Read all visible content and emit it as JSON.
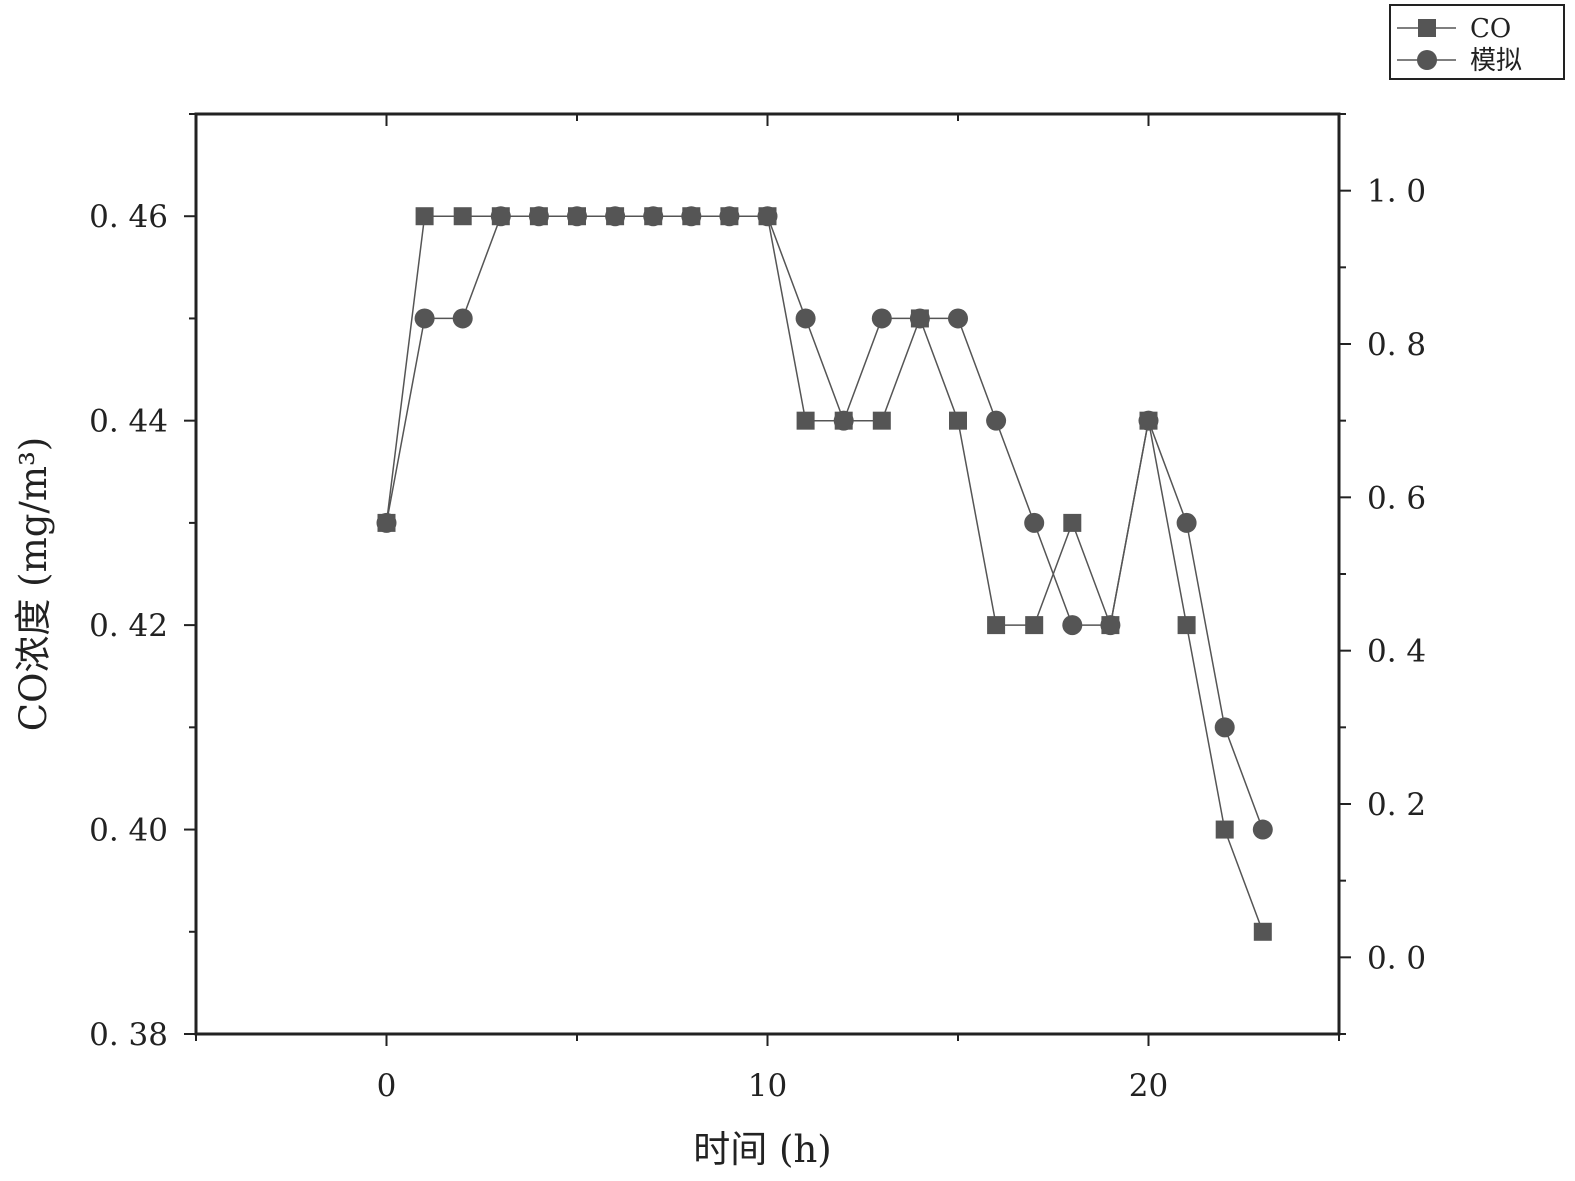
{
  "chart_data": {
    "type": "line",
    "xlabel": "时间 (h)",
    "ylabel": "CO浓度 (mg/m³)",
    "xlim": [
      -5,
      25
    ],
    "ylim": [
      0.38,
      0.47
    ],
    "y2lim": [
      -0.1,
      1.1
    ],
    "xticks": [
      "0",
      "10",
      "20"
    ],
    "yticks": [
      "0.38",
      "0.40",
      "0.42",
      "0.44",
      "0.46"
    ],
    "y2ticks": [
      "0.0",
      "0.2",
      "0.4",
      "0.6",
      "0.8",
      "1.0"
    ],
    "legend_position": "top-right",
    "grid": false,
    "series": [
      {
        "name": "CO",
        "marker": "square",
        "color": "#555555",
        "x": [
          0,
          1,
          2,
          3,
          4,
          5,
          6,
          7,
          8,
          9,
          10,
          11,
          12,
          13,
          14,
          15,
          16,
          17,
          18,
          19,
          20,
          21,
          22,
          23
        ],
        "y": [
          0.43,
          0.46,
          0.46,
          0.46,
          0.46,
          0.46,
          0.46,
          0.46,
          0.46,
          0.46,
          0.46,
          0.44,
          0.44,
          0.44,
          0.45,
          0.44,
          0.42,
          0.42,
          0.43,
          0.42,
          0.44,
          0.42,
          0.4,
          0.39
        ]
      },
      {
        "name": "模拟",
        "marker": "circle",
        "color": "#555555",
        "x": [
          0,
          1,
          2,
          3,
          4,
          5,
          6,
          7,
          8,
          9,
          10,
          11,
          12,
          13,
          14,
          15,
          16,
          17,
          18,
          19,
          20,
          21,
          22,
          23
        ],
        "y": [
          0.43,
          0.45,
          0.45,
          0.46,
          0.46,
          0.46,
          0.46,
          0.46,
          0.46,
          0.46,
          0.46,
          0.45,
          0.44,
          0.45,
          0.45,
          0.45,
          0.44,
          0.43,
          0.42,
          0.42,
          0.44,
          0.43,
          0.41,
          0.4
        ]
      }
    ]
  }
}
